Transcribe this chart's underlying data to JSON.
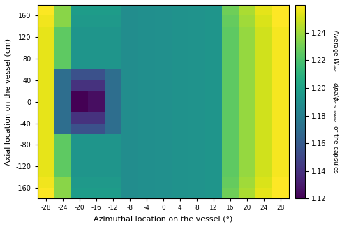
{
  "xlabel": "Azimuthal location on the vessel (°)",
  "ylabel": "Axial location on the vessel (cm)",
  "vmin": 1.12,
  "vmax": 1.26,
  "xticks": [
    -28,
    -24,
    -20,
    -16,
    -12,
    -8,
    -4,
    0,
    4,
    8,
    12,
    16,
    20,
    24,
    28
  ],
  "yticks": [
    -160,
    -120,
    -80,
    -40,
    0,
    40,
    80,
    120,
    160
  ],
  "cbar_ticks": [
    1.12,
    1.14,
    1.16,
    1.18,
    1.2,
    1.22,
    1.24
  ]
}
